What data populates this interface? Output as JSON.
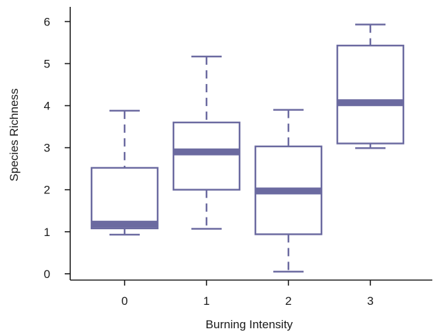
{
  "chart_data": {
    "type": "box",
    "xlabel": "Burning Intensity",
    "ylabel": "Species Richness",
    "categories": [
      "0",
      "1",
      "2",
      "3"
    ],
    "yticks": [
      "0",
      "1",
      "2",
      "3",
      "4",
      "5",
      "6"
    ],
    "ylim": [
      -0.15,
      6.35
    ],
    "color": "#6b6aa0",
    "boxes": [
      {
        "category": "0",
        "whisker_low": 0.93,
        "q1": 1.08,
        "median": 1.18,
        "q3": 2.52,
        "whisker_high": 3.88
      },
      {
        "category": "1",
        "whisker_low": 1.07,
        "q1": 2.0,
        "median": 2.9,
        "q3": 3.6,
        "whisker_high": 5.17
      },
      {
        "category": "2",
        "whisker_low": 0.05,
        "q1": 0.94,
        "median": 1.97,
        "q3": 3.03,
        "whisker_high": 3.9
      },
      {
        "category": "3",
        "whisker_low": 2.99,
        "q1": 3.1,
        "median": 4.07,
        "q3": 5.43,
        "whisker_high": 5.93
      }
    ]
  }
}
